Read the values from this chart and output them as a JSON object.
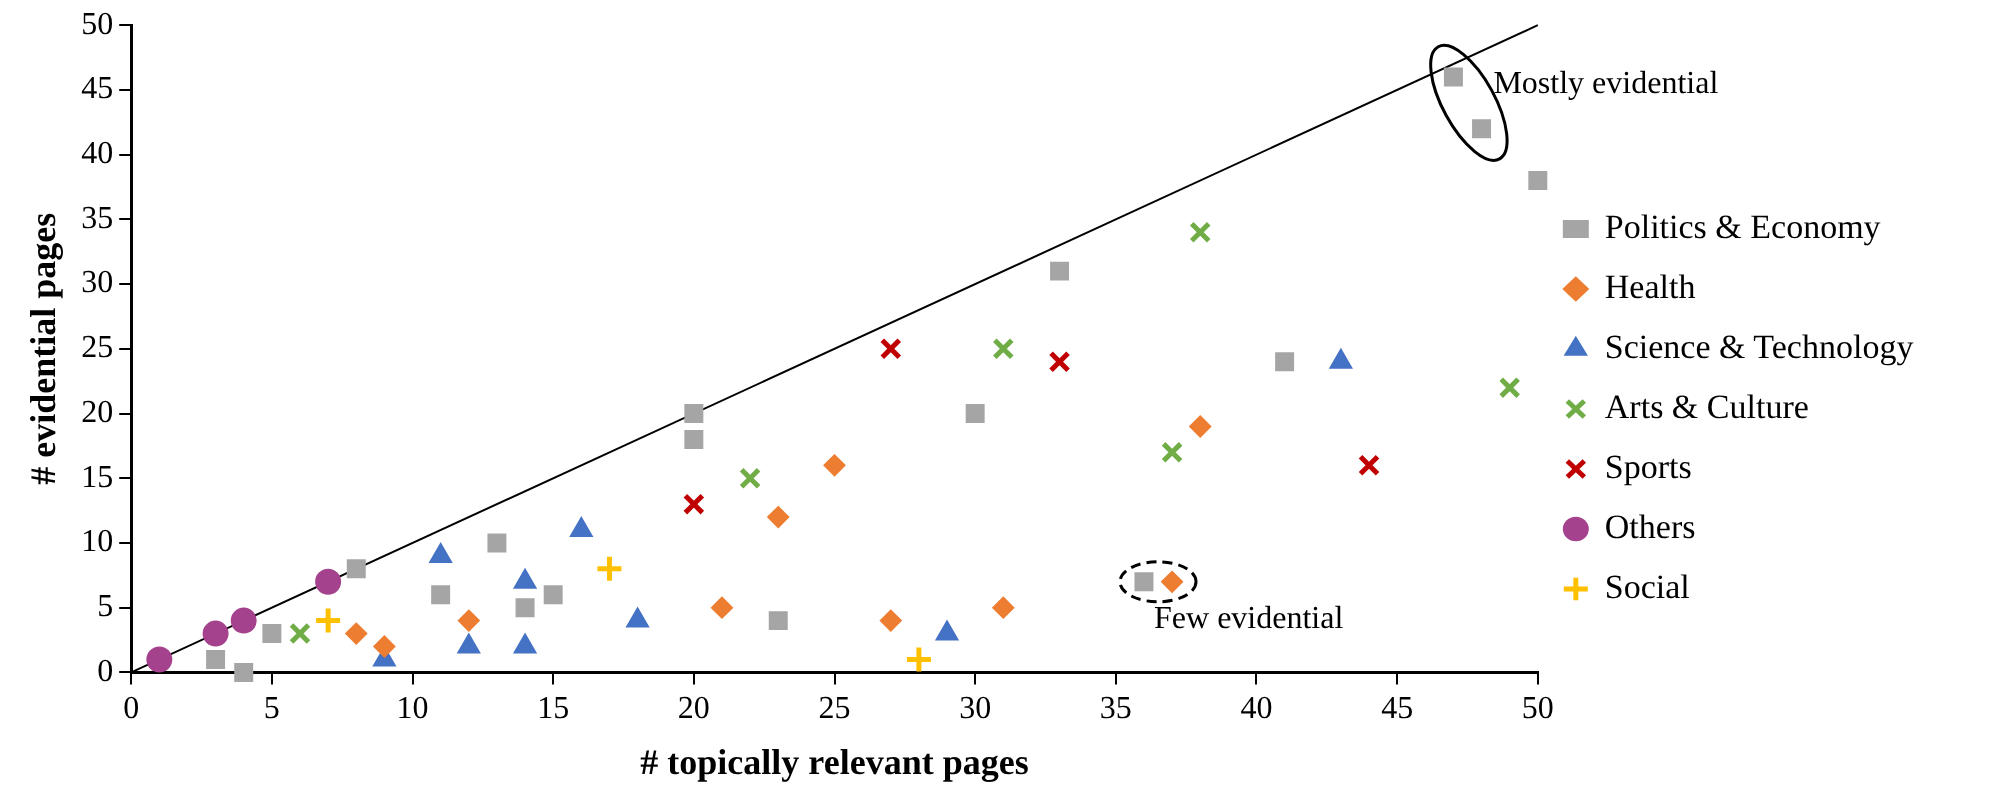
{
  "chart_data": {
    "type": "scatter",
    "xlabel": "# topically relevant pages",
    "ylabel": "# evidential pages",
    "xlim": [
      0,
      50
    ],
    "ylim": [
      0,
      50
    ],
    "xticks": [
      0,
      5,
      10,
      15,
      20,
      25,
      30,
      35,
      40,
      45,
      50
    ],
    "yticks": [
      0,
      5,
      10,
      15,
      20,
      25,
      30,
      35,
      40,
      45,
      50
    ],
    "grid": false,
    "legend": "right",
    "series": [
      {
        "name": "Politics & Economy",
        "color": "#a5a5a5",
        "marker": "square",
        "x": [
          3,
          4,
          5,
          8,
          11,
          13,
          14,
          15,
          20,
          20,
          23,
          30,
          33,
          36,
          41,
          47,
          48,
          50
        ],
        "values": [
          1,
          0,
          3,
          8,
          6,
          10,
          5,
          6,
          20,
          18,
          4,
          20,
          31,
          7,
          24,
          46,
          42,
          38
        ]
      },
      {
        "name": "Health",
        "color": "#ed7d31",
        "marker": "diamond",
        "x": [
          8,
          9,
          12,
          21,
          23,
          25,
          27,
          31,
          37,
          38
        ],
        "values": [
          3,
          2,
          4,
          5,
          12,
          16,
          4,
          5,
          7,
          19
        ]
      },
      {
        "name": "Science & Technology",
        "color": "#4472c4",
        "marker": "triangle",
        "x": [
          9,
          11,
          12,
          14,
          14,
          16,
          18,
          29,
          43
        ],
        "values": [
          1,
          9,
          2,
          7,
          2,
          11,
          4,
          3,
          24
        ]
      },
      {
        "name": "Arts & Culture",
        "color": "#70ad47",
        "marker": "cross",
        "x": [
          6,
          22,
          31,
          37,
          38,
          49
        ],
        "values": [
          3,
          15,
          25,
          17,
          34,
          22
        ]
      },
      {
        "name": "Sports",
        "color": "#c00000",
        "marker": "cross",
        "x": [
          20,
          27,
          33,
          44
        ],
        "values": [
          13,
          25,
          24,
          16
        ]
      },
      {
        "name": "Others",
        "color": "#a5428d",
        "marker": "circle",
        "x": [
          1,
          3,
          4,
          7
        ],
        "values": [
          1,
          3,
          4,
          7
        ]
      },
      {
        "name": "Social",
        "color": "#ffc000",
        "marker": "cross",
        "x": [
          7,
          17,
          28
        ],
        "values": [
          4,
          8,
          1
        ]
      },
      {
        "type": "line",
        "color": "#000000",
        "marker": "none",
        "x": [
          0,
          50
        ],
        "values": [
          0,
          50
        ]
      }
    ],
    "annotations": [
      {
        "text": "Mostly evidential",
        "x": 47,
        "y": 46
      },
      {
        "text": "Few evidential",
        "x": 36.5,
        "y": 7
      }
    ]
  }
}
